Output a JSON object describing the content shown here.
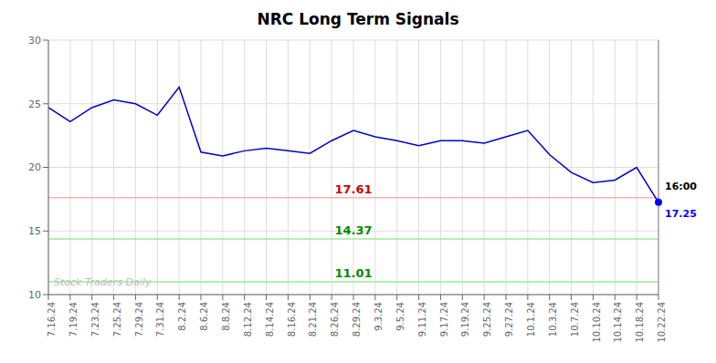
{
  "chart_data": {
    "type": "line",
    "title": "NRC Long Term Signals",
    "categories": [
      "7.16.24",
      "7.19.24",
      "7.23.24",
      "7.25.24",
      "7.29.24",
      "7.31.24",
      "8.2.24",
      "8.6.24",
      "8.8.24",
      "8.12.24",
      "8.14.24",
      "8.16.24",
      "8.21.24",
      "8.26.24",
      "8.29.24",
      "9.3.24",
      "9.5.24",
      "9.11.24",
      "9.17.24",
      "9.19.24",
      "9.25.24",
      "9.27.24",
      "10.1.24",
      "10.3.24",
      "10.7.24",
      "10.10.24",
      "10.14.24",
      "10.18.24",
      "10.22.24"
    ],
    "values": [
      24.7,
      23.6,
      24.7,
      25.3,
      25.0,
      24.1,
      26.3,
      21.2,
      20.9,
      21.3,
      21.5,
      21.3,
      21.1,
      22.1,
      22.9,
      22.4,
      22.1,
      21.7,
      22.1,
      22.1,
      21.9,
      22.4,
      22.9,
      21.0,
      19.6,
      18.8,
      19.0,
      20.0,
      17.25
    ],
    "color": "#0000cc",
    "last_point": {
      "color": "#0000ff"
    },
    "ylim": [
      10,
      30
    ],
    "yticks": [
      10,
      15,
      20,
      25,
      30
    ],
    "grid": true,
    "grid_color": "#dddddd",
    "hlines": [
      {
        "value": 17.61,
        "label": "17.61",
        "color": "#ffb3b3",
        "label_color": "#cc0000"
      },
      {
        "value": 14.37,
        "label": "14.37",
        "color": "#99ee99",
        "label_color": "#008800"
      },
      {
        "value": 11.01,
        "label": "11.01",
        "color": "#99ee99",
        "label_color": "#008800"
      }
    ],
    "vline": {
      "color": "#999999"
    },
    "annotations": [
      {
        "text": "16:00",
        "color": "#000000"
      },
      {
        "text": "17.25",
        "color": "#0000ff"
      }
    ],
    "watermark": {
      "text": "Stock Traders Daily",
      "color": "#bbbbbb"
    }
  }
}
